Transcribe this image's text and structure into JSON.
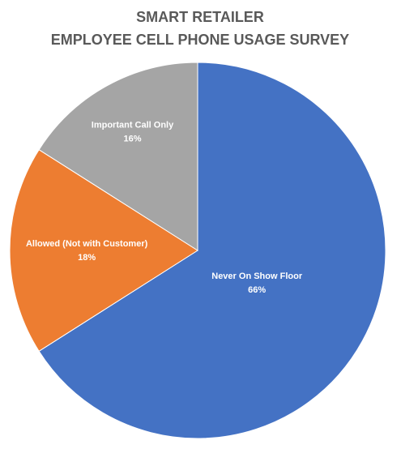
{
  "chart_data": {
    "type": "pie",
    "title": "SMART RETAILER",
    "subtitle": "EMPLOYEE CELL PHONE USAGE SURVEY",
    "categories": [
      "Never On Show Floor",
      "Allowed (Not with Customer)",
      "Important Call Only"
    ],
    "values": [
      66,
      18,
      16
    ],
    "value_labels": [
      "66%",
      "18%",
      "16%"
    ],
    "colors": [
      "#4472c4",
      "#ed7d31",
      "#a5a5a5"
    ]
  }
}
